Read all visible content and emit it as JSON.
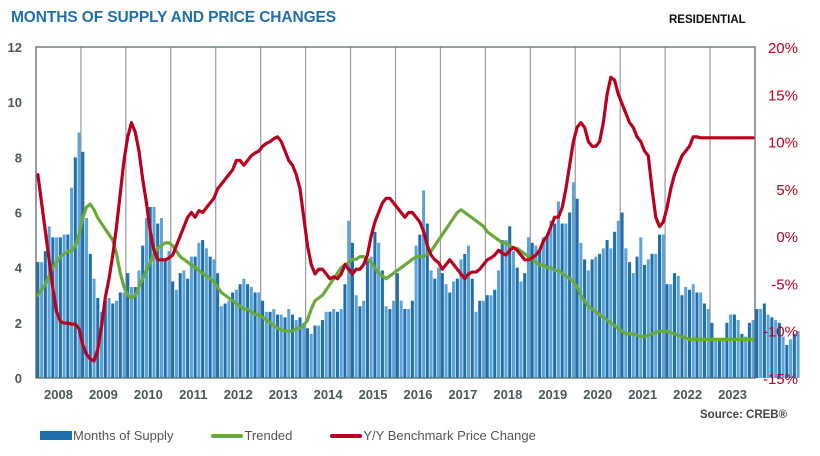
{
  "header": {
    "title": "MONTHS OF SUPPLY AND PRICE CHANGES",
    "subtitle": "RESIDENTIAL",
    "source": "Source: CREB®"
  },
  "legend": [
    {
      "label": "Months of Supply",
      "kind": "bar",
      "color": "#1f6fae"
    },
    {
      "label": "Trended",
      "kind": "line",
      "color": "#6aaa3a"
    },
    {
      "label": "Y/Y Benchmark Price Change",
      "kind": "line",
      "color": "#b8001f"
    }
  ],
  "chart_data": {
    "type": "bar",
    "title": "MONTHS OF SUPPLY AND PRICE CHANGES",
    "subtitle": "RESIDENTIAL",
    "xlabel": "",
    "ylabel": "",
    "y2label": "",
    "ylim": [
      0,
      12
    ],
    "y2lim": [
      -15,
      20
    ],
    "yticks": [
      "0",
      "2",
      "4",
      "6",
      "8",
      "10",
      "12"
    ],
    "y2ticks": [
      "-15%",
      "-10%",
      "-5%",
      "0%",
      "5%",
      "10%",
      "15%",
      "20%"
    ],
    "categories": [
      "2008",
      "2009",
      "2010",
      "2011",
      "2012",
      "2013",
      "2014",
      "2015",
      "2016",
      "2017",
      "2018",
      "2019",
      "2020",
      "2021",
      "2022",
      "2023"
    ],
    "grid": "vertical year separators",
    "legend_position": "bottom",
    "series": [
      {
        "name": "Months of Supply",
        "type": "bar",
        "axis": "left",
        "values": [
          4.2,
          4.2,
          4.6,
          5.5,
          5.1,
          5.1,
          5.1,
          5.2,
          5.2,
          6.9,
          8.0,
          8.9,
          8.2,
          5.8,
          4.5,
          3.6,
          2.9,
          2.4,
          2.8,
          2.9,
          2.7,
          2.8,
          3.1,
          3.1,
          3.8,
          3.3,
          3.3,
          3.9,
          4.8,
          5.8,
          6.2,
          6.2,
          5.6,
          5.8,
          4.3,
          4.6,
          3.5,
          3.2,
          3.8,
          3.9,
          3.6,
          4.4,
          4.4,
          4.9,
          5.0,
          4.7,
          4.4,
          4.3,
          3.8,
          2.6,
          2.7,
          2.8,
          3.1,
          3.2,
          3.4,
          3.6,
          3.4,
          3.3,
          3.1,
          3.1,
          2.8,
          2.4,
          2.4,
          2.5,
          2.3,
          2.3,
          2.2,
          2.5,
          2.3,
          2.1,
          2.2,
          2.0,
          1.8,
          1.6,
          1.9,
          1.9,
          2.1,
          2.4,
          2.4,
          2.5,
          2.4,
          2.5,
          3.4,
          5.7,
          4.9,
          3.0,
          2.6,
          2.8,
          4.3,
          4.4,
          5.3,
          4.9,
          3.9,
          2.6,
          2.5,
          2.8,
          3.8,
          2.8,
          2.5,
          2.5,
          2.8,
          4.8,
          5.2,
          6.8,
          5.6,
          3.9,
          3.6,
          4.0,
          3.8,
          3.4,
          3.1,
          3.5,
          3.6,
          4.3,
          4.5,
          4.8,
          3.6,
          2.4,
          2.8,
          2.8,
          3.0,
          3.0,
          3.2,
          3.9,
          5.0,
          5.0,
          5.5,
          4.6,
          4.0,
          3.5,
          3.8,
          5.1,
          4.9,
          4.8,
          4.6,
          5.1,
          5.1,
          5.7,
          5.6,
          6.4,
          5.6,
          5.6,
          6.0,
          7.1,
          6.5,
          4.9,
          4.3,
          3.9,
          4.3,
          4.4,
          4.5,
          4.7,
          5.0,
          4.7,
          5.3,
          5.7,
          6.0,
          4.7,
          4.2,
          3.8,
          4.4,
          5.1,
          4.1,
          4.3,
          4.5,
          4.5,
          5.2,
          5.2,
          3.4,
          3.4,
          3.8,
          3.7,
          3.0,
          3.3,
          3.2,
          3.4,
          3.1,
          3.1,
          2.7,
          2.5,
          2.0,
          1.4,
          1.4,
          1.4,
          2.0,
          2.3,
          2.3,
          2.1,
          1.6,
          1.5,
          2.0,
          2.1,
          2.5,
          2.5,
          2.7,
          2.3,
          2.2,
          2.1,
          2.0,
          1.5,
          1.2,
          1.4,
          1.6,
          1.7
        ]
      },
      {
        "name": "Trended",
        "type": "line",
        "axis": "left",
        "values": [
          3.0,
          3.2,
          3.4,
          3.7,
          4.0,
          4.2,
          4.4,
          4.5,
          4.6,
          4.6,
          4.8,
          5.2,
          5.8,
          6.2,
          6.3,
          6.1,
          5.8,
          5.6,
          5.4,
          5.2,
          5.0,
          4.5,
          3.8,
          3.3,
          3.0,
          2.9,
          3.0,
          3.3,
          3.6,
          3.9,
          4.2,
          4.5,
          4.7,
          4.8,
          4.9,
          4.9,
          4.8,
          4.6,
          4.4,
          4.3,
          4.2,
          4.1,
          4.0,
          3.9,
          3.8,
          3.7,
          3.6,
          3.5,
          3.3,
          3.1,
          3.0,
          2.9,
          2.8,
          2.7,
          2.6,
          2.5,
          2.5,
          2.4,
          2.3,
          2.3,
          2.2,
          2.1,
          2.0,
          1.9,
          1.8,
          1.75,
          1.7,
          1.7,
          1.7,
          1.8,
          1.8,
          1.9,
          2.1,
          2.5,
          2.8,
          2.9,
          3.0,
          3.2,
          3.4,
          3.6,
          3.8,
          4.0,
          4.1,
          4.2,
          4.3,
          4.3,
          4.4,
          4.4,
          4.3,
          4.2,
          4.0,
          3.8,
          3.7,
          3.6,
          3.7,
          3.8,
          3.9,
          4.0,
          4.1,
          4.2,
          4.3,
          4.4,
          4.4,
          4.4,
          4.5,
          4.6,
          4.8,
          5.0,
          5.2,
          5.4,
          5.6,
          5.8,
          6.0,
          6.1,
          6.0,
          5.9,
          5.8,
          5.7,
          5.6,
          5.5,
          5.3,
          5.2,
          5.1,
          5.0,
          4.9,
          4.9,
          4.8,
          4.7,
          4.7,
          4.6,
          4.5,
          4.4,
          4.3,
          4.2,
          4.1,
          4.1,
          4.0,
          4.0,
          3.9,
          3.9,
          3.8,
          3.7,
          3.6,
          3.5,
          3.3,
          3.0,
          2.8,
          2.6,
          2.5,
          2.4,
          2.3,
          2.2,
          2.1,
          2.0,
          1.9,
          1.8,
          1.7,
          1.6,
          1.6,
          1.6,
          1.55,
          1.5,
          1.5,
          1.55,
          1.6,
          1.65,
          1.7,
          1.7,
          1.7,
          1.65,
          1.6,
          1.55,
          1.5,
          1.45,
          1.4,
          1.4,
          1.4,
          1.4,
          1.4,
          1.4,
          1.4,
          1.4,
          1.4,
          1.4,
          1.4,
          1.4,
          1.4,
          1.4,
          1.4,
          1.4,
          1.4,
          1.4
        ]
      },
      {
        "name": "Y/Y Benchmark Price Change",
        "type": "line",
        "axis": "right",
        "values": [
          6.5,
          3.5,
          0.5,
          -2.5,
          -5.5,
          -8.0,
          -9.0,
          -9.2,
          -9.2,
          -9.3,
          -9.3,
          -9.8,
          -11.5,
          -12.5,
          -13.0,
          -13.2,
          -12.0,
          -9.5,
          -6.5,
          -4.5,
          -2.0,
          1.0,
          4.5,
          8.0,
          10.5,
          12.0,
          11.0,
          9.0,
          6.0,
          3.5,
          0.5,
          -1.5,
          -2.5,
          -2.5,
          -2.5,
          -2.3,
          -2.0,
          -1.0,
          0.0,
          1.0,
          2.0,
          2.5,
          2.0,
          2.7,
          2.5,
          3.0,
          3.5,
          4.0,
          5.0,
          5.5,
          6.0,
          6.5,
          7.0,
          8.0,
          8.0,
          7.5,
          8.0,
          8.5,
          8.8,
          9.0,
          9.5,
          9.8,
          10.0,
          10.3,
          10.5,
          10.0,
          9.0,
          8.0,
          7.5,
          6.5,
          5.0,
          2.0,
          -1.0,
          -3.0,
          -4.0,
          -3.5,
          -3.5,
          -4.0,
          -4.5,
          -4.3,
          -4.5,
          -4.0,
          -3.0,
          -3.5,
          -4.0,
          -3.5,
          -3.5,
          -3.0,
          -2.0,
          0.0,
          1.5,
          2.5,
          3.5,
          4.0,
          4.0,
          3.5,
          3.0,
          2.5,
          2.0,
          2.5,
          2.5,
          2.0,
          1.5,
          0.5,
          -1.0,
          -2.0,
          -2.5,
          -2.8,
          -3.5,
          -3.0,
          -2.5,
          -3.0,
          -3.5,
          -4.0,
          -4.5,
          -4.0,
          -3.8,
          -3.8,
          -3.5,
          -3.0,
          -2.5,
          -2.3,
          -2.0,
          -1.5,
          -1.8,
          -2.0,
          -1.5,
          -1.2,
          -1.5,
          -2.0,
          -2.5,
          -2.5,
          -2.3,
          -2.0,
          -1.5,
          -0.5,
          0.0,
          1.0,
          2.0,
          2.0,
          3.0,
          5.0,
          7.5,
          10.0,
          11.5,
          12.0,
          11.5,
          10.0,
          9.5,
          9.5,
          10.0,
          12.0,
          15.0,
          16.8,
          16.5,
          15.0,
          14.0,
          13.0,
          12.0,
          11.5,
          10.5,
          10.0,
          9.0,
          8.5,
          5.0,
          2.0,
          1.0,
          1.5,
          3.0,
          5.0,
          6.5,
          7.5,
          8.5,
          9.0,
          9.5,
          10.5,
          10.5,
          10.4,
          10.4,
          10.4,
          10.4,
          10.4,
          10.4,
          10.4,
          10.4,
          10.4,
          10.4,
          10.4,
          10.4,
          10.4,
          10.4,
          10.4
        ]
      }
    ]
  }
}
